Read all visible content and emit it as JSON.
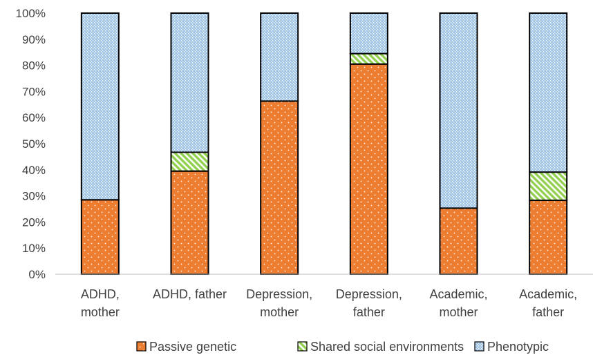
{
  "chart_data": {
    "type": "stacked_bar_100",
    "categories": [
      [
        "ADHD,",
        "mother"
      ],
      [
        "ADHD, father"
      ],
      [
        "Depression,",
        "mother"
      ],
      [
        "Depression,",
        "father"
      ],
      [
        "Academic,",
        "mother"
      ],
      [
        "Academic,",
        "father"
      ]
    ],
    "series": [
      {
        "name": "Passive genetic",
        "values": [
          28.5,
          39.5,
          66.3,
          80.5,
          25.3,
          28.3
        ],
        "color": "#ED7D31",
        "pattern": "dots"
      },
      {
        "name": "Shared social environments",
        "values": [
          0,
          7.2,
          0,
          4.0,
          0,
          10.8
        ],
        "color": "#92D050",
        "pattern": "diagonal"
      },
      {
        "name": "Phenotypic",
        "values": [
          71.5,
          53.3,
          33.7,
          15.5,
          74.7,
          60.9
        ],
        "color": "#9DC3E6",
        "pattern": "checker"
      }
    ],
    "ylim": [
      0,
      100
    ],
    "yticks": [
      "0%",
      "10%",
      "20%",
      "30%",
      "40%",
      "50%",
      "60%",
      "70%",
      "80%",
      "90%",
      "100%"
    ],
    "grid": false,
    "legend": "bottom"
  }
}
